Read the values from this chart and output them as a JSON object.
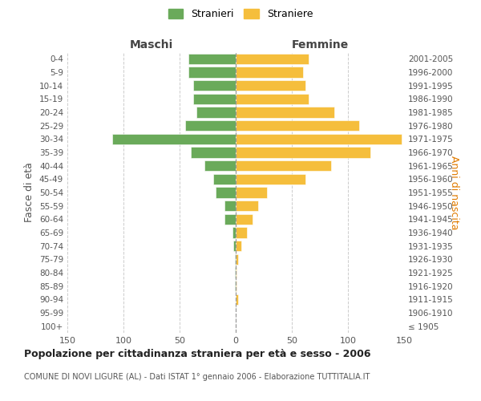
{
  "age_groups": [
    "100+",
    "95-99",
    "90-94",
    "85-89",
    "80-84",
    "75-79",
    "70-74",
    "65-69",
    "60-64",
    "55-59",
    "50-54",
    "45-49",
    "40-44",
    "35-39",
    "30-34",
    "25-29",
    "20-24",
    "15-19",
    "10-14",
    "5-9",
    "0-4"
  ],
  "birth_years": [
    "≤ 1905",
    "1906-1910",
    "1911-1915",
    "1916-1920",
    "1921-1925",
    "1926-1930",
    "1931-1935",
    "1936-1940",
    "1941-1945",
    "1946-1950",
    "1951-1955",
    "1956-1960",
    "1961-1965",
    "1966-1970",
    "1971-1975",
    "1976-1980",
    "1981-1985",
    "1986-1990",
    "1991-1995",
    "1996-2000",
    "2001-2005"
  ],
  "maschi": [
    0,
    0,
    0,
    1,
    1,
    1,
    2,
    3,
    10,
    10,
    18,
    20,
    28,
    40,
    110,
    45,
    35,
    38,
    38,
    42,
    42
  ],
  "femmine": [
    0,
    0,
    2,
    1,
    1,
    2,
    5,
    10,
    15,
    20,
    28,
    62,
    85,
    120,
    148,
    110,
    88,
    65,
    62,
    60,
    65
  ],
  "color_maschi": "#6aaa5a",
  "color_femmine": "#f5be3c",
  "title": "Popolazione per cittadinanza straniera per età e sesso - 2006",
  "subtitle": "COMUNE DI NOVI LIGURE (AL) - Dati ISTAT 1° gennaio 2006 - Elaborazione TUTTITALIA.IT",
  "ylabel_left": "Fasce di età",
  "ylabel_right": "Anni di nascita",
  "xlabel_maschi": "Maschi",
  "xlabel_femmine": "Femmine",
  "xlim": 150,
  "legend_stranieri": "Stranieri",
  "legend_straniere": "Straniere",
  "background_color": "#ffffff",
  "grid_color": "#cccccc"
}
